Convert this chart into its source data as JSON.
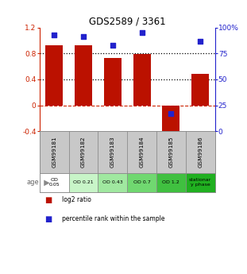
{
  "title": "GDS2589 / 3361",
  "samples": [
    "GSM99181",
    "GSM99182",
    "GSM99183",
    "GSM99184",
    "GSM99185",
    "GSM99186"
  ],
  "log2_ratio": [
    0.92,
    0.93,
    0.73,
    0.79,
    -0.43,
    0.48
  ],
  "percentile_rank": [
    93,
    91,
    83,
    95,
    17,
    87
  ],
  "ylim_left": [
    -0.4,
    1.2
  ],
  "ylim_right": [
    0,
    100
  ],
  "age_labels": [
    "OD\n0.05",
    "OD 0.21",
    "OD 0.43",
    "OD 0.7",
    "OD 1.2",
    "stationar\ny phase"
  ],
  "age_bg_colors": [
    "#ffffff",
    "#c8f5c8",
    "#a0e8a0",
    "#70d870",
    "#40c040",
    "#20b020"
  ],
  "sample_bg_color": "#c8c8c8",
  "bar_color": "#bb1100",
  "dot_color": "#2222cc",
  "hline_dash_color": "#cc2200",
  "dotted_line_color": "#000000",
  "right_axis_color": "#2222cc",
  "left_axis_color": "#cc2200",
  "legend_red": "log2 ratio",
  "legend_blue": "percentile rank within the sample",
  "bar_width": 0.6
}
